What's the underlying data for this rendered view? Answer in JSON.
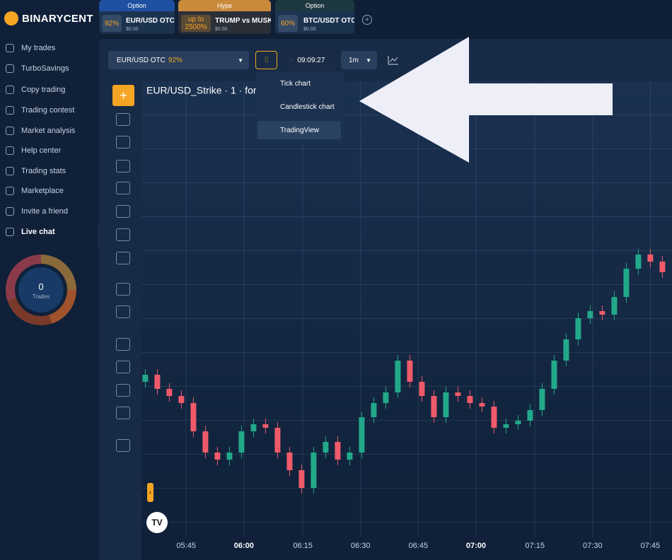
{
  "logo": "BINARYCENT",
  "tabs": [
    {
      "label": "Option",
      "payout": "92%",
      "asset": "EUR/USD OTC",
      "amount": "$0.00"
    },
    {
      "label": "Hype",
      "payout_prefix": "up to",
      "payout": "2500%",
      "asset": "TRUMP vs MUSK",
      "amount": "$0.00"
    },
    {
      "label": "Option",
      "payout": "60%",
      "asset": "BTC/USDT OTC",
      "amount": "$0.00"
    }
  ],
  "menu": [
    "My trades",
    "TurboSavings",
    "Copy trading",
    "Trading contest",
    "Market analysis",
    "Help center",
    "Trading stats",
    "Marketplace",
    "Invite a friend",
    "Live chat"
  ],
  "trades": {
    "count": 0,
    "label": "Trades"
  },
  "toolbar": {
    "asset": "EUR/USD OTC",
    "payout": "92%",
    "time": "09:09:27",
    "interval": "1m"
  },
  "chart_type_menu": [
    "Tick chart",
    "Candlestick chart",
    "TradingView"
  ],
  "chart_data": {
    "type": "candlestick",
    "title": "EUR/USD_Strike · 1 · for",
    "open": [
      260,
      270,
      250,
      240,
      230,
      190,
      160,
      150,
      160,
      190,
      200,
      195,
      160,
      135,
      110,
      160,
      175,
      150,
      160,
      210,
      230,
      245,
      290,
      260,
      240,
      210,
      245,
      240,
      230,
      225,
      195,
      200,
      205,
      220,
      250,
      290,
      320,
      350,
      360,
      355,
      380,
      420,
      440,
      430
    ],
    "close": [
      270,
      250,
      240,
      230,
      190,
      160,
      150,
      160,
      190,
      200,
      195,
      160,
      135,
      110,
      160,
      175,
      150,
      160,
      210,
      230,
      245,
      290,
      260,
      240,
      210,
      245,
      240,
      230,
      225,
      195,
      200,
      205,
      220,
      250,
      290,
      320,
      350,
      360,
      355,
      380,
      420,
      440,
      430,
      415
    ],
    "high": [
      278,
      278,
      258,
      248,
      238,
      198,
      168,
      168,
      198,
      208,
      208,
      203,
      168,
      143,
      168,
      183,
      183,
      168,
      218,
      238,
      253,
      298,
      298,
      268,
      248,
      253,
      253,
      248,
      238,
      233,
      208,
      213,
      228,
      258,
      298,
      328,
      358,
      368,
      368,
      388,
      428,
      448,
      448,
      438
    ],
    "low": [
      252,
      242,
      232,
      222,
      182,
      152,
      142,
      142,
      152,
      182,
      187,
      152,
      127,
      102,
      102,
      152,
      142,
      142,
      152,
      202,
      222,
      237,
      252,
      232,
      202,
      202,
      232,
      222,
      217,
      187,
      187,
      192,
      197,
      212,
      242,
      282,
      312,
      342,
      347,
      347,
      372,
      412,
      422,
      407
    ],
    "xlim": [
      -0.2,
      43.8
    ],
    "ylim": [
      40,
      685
    ],
    "xticks": [
      {
        "value": 3.4,
        "label": "05:45"
      },
      {
        "value": 8.2,
        "label": "06:00",
        "bold": true
      },
      {
        "value": 13.1,
        "label": "06:15"
      },
      {
        "value": 17.9,
        "label": "06:30"
      },
      {
        "value": 22.7,
        "label": "06:45"
      },
      {
        "value": 27.5,
        "label": "07:00",
        "bold": true
      },
      {
        "value": 32.4,
        "label": "07:15"
      },
      {
        "value": 37.2,
        "label": "07:30"
      },
      {
        "value": 42.0,
        "label": "07:45"
      }
    ],
    "up_color": "#22a88a",
    "down_color": "#ef5a6a",
    "grid": true
  }
}
